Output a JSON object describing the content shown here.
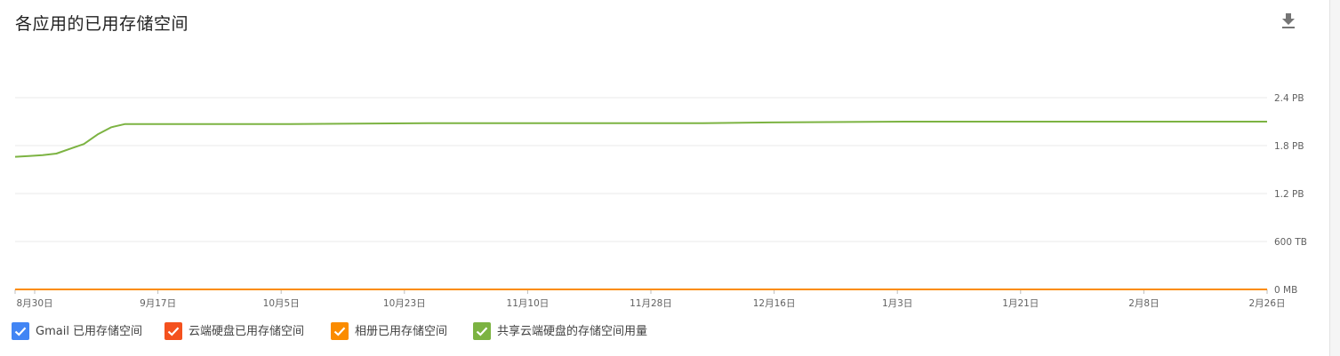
{
  "title": "各应用的已用存储空间",
  "download_icon": "download-icon",
  "chart_data": {
    "type": "line",
    "title": "各应用的已用存储空间",
    "xlabel": "",
    "ylabel": "",
    "x_ticks": [
      "8月30日",
      "9月17日",
      "10月5日",
      "10月23日",
      "11月10日",
      "11月28日",
      "12月16日",
      "1月3日",
      "1月21日",
      "2月8日",
      "2月26日"
    ],
    "y_ticks": [
      "0 MB",
      "600 TB",
      "1.2 PB",
      "1.8 PB",
      "2.4 PB"
    ],
    "y_unit": "PB",
    "ylim": [
      0,
      2.4
    ],
    "grid": true,
    "y_axis_position": "right",
    "legend_position": "bottom-left",
    "series": [
      {
        "name": "Gmail 已用存储空间",
        "color": "#4285f4",
        "x": [
          0,
          182
        ],
        "values": [
          0,
          0
        ]
      },
      {
        "name": "云端硬盘已用存储空间",
        "color": "#f4511e",
        "x": [
          0,
          182
        ],
        "values": [
          0,
          0
        ]
      },
      {
        "name": "相册已用存储空间",
        "color": "#fb8c00",
        "x": [
          0,
          182
        ],
        "values": [
          0,
          0
        ]
      },
      {
        "name": "共享云端硬盘的存储空间用量",
        "color": "#7cb342",
        "x": [
          0,
          2,
          4,
          6,
          8,
          10,
          12,
          14,
          16,
          18,
          20,
          40,
          60,
          80,
          100,
          110,
          130,
          150,
          170,
          182
        ],
        "values": [
          1.66,
          1.67,
          1.68,
          1.7,
          1.76,
          1.82,
          1.94,
          2.03,
          2.07,
          2.07,
          2.07,
          2.07,
          2.08,
          2.08,
          2.08,
          2.09,
          2.1,
          2.1,
          2.1,
          2.1
        ]
      }
    ]
  },
  "legend": [
    {
      "label": "Gmail 已用存储空间",
      "color": "#4285f4",
      "checked": true
    },
    {
      "label": "云端硬盘已用存储空间",
      "color": "#f4511e",
      "checked": true
    },
    {
      "label": "相册已用存储空间",
      "color": "#fb8c00",
      "checked": true
    },
    {
      "label": "共享云端硬盘的存储空间用量",
      "color": "#7cb342",
      "checked": true
    }
  ]
}
